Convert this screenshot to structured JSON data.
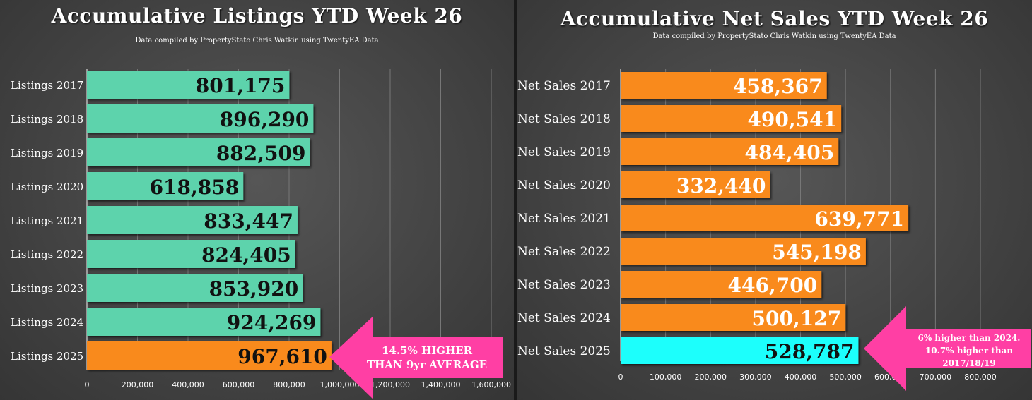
{
  "charts": {
    "listings": {
      "title": "Accumulative Listings YTD Week 26",
      "subtitle": "Data compiled by PropertyStato Chris Watkin using TwentyEA Data",
      "annotation": [
        "14.5% HIGHER",
        "THAN 9yr AVERAGE"
      ]
    },
    "net_sales": {
      "title": "Accumulative Net Sales YTD Week 26",
      "subtitle": "Data compiled by PropertyStato Chris Watkin using TwentyEA Data",
      "annotation": [
        "6% higher than 2024.",
        "10.7% higher than",
        "2017/18/19"
      ]
    }
  },
  "colors": {
    "listings_bar": "#5dd3ac",
    "highlight_bar": "#f98a1d",
    "net_sales_bar": "#f98a1d",
    "net_sales_highlight": "#1ffffc",
    "arrow": "#ff3fa4",
    "grid": "#777777",
    "axis_text": "#ffffff"
  },
  "chart_data": [
    {
      "type": "bar",
      "orientation": "horizontal",
      "title": "Accumulative Listings YTD Week 26",
      "categories": [
        "Listings 2017",
        "Listings 2018",
        "Listings 2019",
        "Listings 2020",
        "Listings 2021",
        "Listings 2022",
        "Listings 2023",
        "Listings 2024",
        "Listings 2025"
      ],
      "values": [
        801175,
        896290,
        882509,
        618858,
        833447,
        824405,
        853920,
        924269,
        967610
      ],
      "value_labels": [
        "801,175",
        "896,290",
        "882,509",
        "618,858",
        "833,447",
        "824,405",
        "853,920",
        "924,269",
        "967,610"
      ],
      "highlight_index": 8,
      "xlim": [
        0,
        1600000
      ],
      "xticks": [
        0,
        200000,
        400000,
        600000,
        800000,
        1000000,
        1200000,
        1400000,
        1600000
      ],
      "xtick_labels": [
        "0",
        "200,000",
        "400,000",
        "600,000",
        "800,000",
        "1,000,000",
        "1,200,000",
        "1,400,000",
        "1,600,000"
      ],
      "grid": true
    },
    {
      "type": "bar",
      "orientation": "horizontal",
      "title": "Accumulative Net Sales YTD Week 26",
      "categories": [
        "Net Sales 2017",
        "Net Sales 2018",
        "Net Sales 2019",
        "Net Sales 2020",
        "Net Sales 2021",
        "Net Sales 2022",
        "Net Sales 2023",
        "Net Sales 2024",
        "Net Sales 2025"
      ],
      "values": [
        458367,
        490541,
        484405,
        332440,
        639771,
        545198,
        446700,
        500127,
        528787
      ],
      "value_labels": [
        "458,367",
        "490,541",
        "484,405",
        "332,440",
        "639,771",
        "545,198",
        "446,700",
        "500,127",
        "528,787"
      ],
      "highlight_index": 8,
      "xlim": [
        0,
        800000
      ],
      "xticks": [
        0,
        100000,
        200000,
        300000,
        400000,
        500000,
        600000,
        700000,
        800000
      ],
      "xtick_labels": [
        "0",
        "100,000",
        "200,000",
        "300,000",
        "400,000",
        "500,000",
        "600,000",
        "700,000",
        "800,000"
      ],
      "grid": true
    }
  ]
}
